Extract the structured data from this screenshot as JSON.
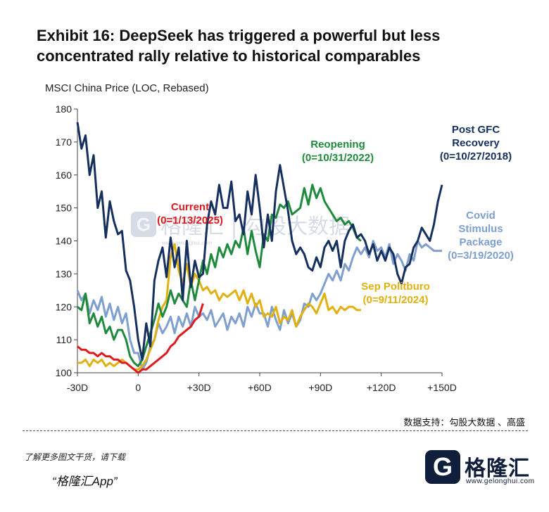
{
  "title": "Exhibit 16: DeepSeek has triggered a powerful but less concentrated rally relative to historical comparables",
  "source": "数据支持：勾股大数据 、高盛",
  "promo": {
    "line1": "了解更多图文干货，请下载",
    "line2": "“格隆汇App”"
  },
  "logo": {
    "glyph": "G",
    "name": "格隆汇",
    "url": "www.gelonghui.com"
  },
  "watermark": {
    "glyph": "G",
    "text": "格隆汇 | 勾股大数据",
    "url": "www.gelonghui.com"
  },
  "colors": {
    "navy": "#15305e",
    "green": "#1f8a3c",
    "lightblue": "#7f9fcf",
    "yellow": "#e2b00f",
    "red": "#e0191e"
  },
  "chart_data": {
    "type": "line",
    "title": "Exhibit 16: DeepSeek has triggered a powerful but less concentrated rally relative to historical comparables",
    "ylabel": "MSCI China Price (LOC, Rebased)",
    "xlabel": "",
    "xlim": [
      -30,
      150
    ],
    "ylim": [
      100,
      180
    ],
    "x_ticks": [
      -30,
      0,
      30,
      60,
      90,
      120,
      150
    ],
    "x_tick_labels": [
      "-30D",
      "0",
      "+30D",
      "+60D",
      "+90D",
      "+120D",
      "+150D"
    ],
    "y_ticks": [
      100,
      110,
      120,
      130,
      140,
      150,
      160,
      170,
      180
    ],
    "y_tick_labels": [
      "100",
      "110",
      "120",
      "130",
      "140",
      "150",
      "160",
      "170",
      "180"
    ],
    "series": [
      {
        "name": "Post GFC Recovery",
        "label_lines": [
          "Post GFC",
          "Recovery",
          "(0=10/27/2018)"
        ],
        "color": "#15305e",
        "x": [
          -30,
          -28,
          -26,
          -24,
          -22,
          -20,
          -18,
          -16,
          -14,
          -12,
          -10,
          -8,
          -6,
          -4,
          -2,
          0,
          2,
          4,
          6,
          8,
          10,
          12,
          14,
          16,
          18,
          20,
          22,
          24,
          26,
          28,
          30,
          32,
          34,
          36,
          38,
          40,
          42,
          44,
          46,
          48,
          50,
          52,
          54,
          56,
          58,
          60,
          62,
          64,
          66,
          68,
          70,
          72,
          74,
          76,
          78,
          80,
          82,
          84,
          86,
          88,
          90,
          92,
          94,
          96,
          98,
          100,
          102,
          104,
          106,
          108,
          110,
          112,
          114,
          116,
          118,
          120,
          122,
          124,
          126,
          128,
          130,
          132,
          134,
          136,
          138,
          140,
          142,
          144,
          146,
          148,
          150
        ],
        "y": [
          176,
          168,
          172,
          160,
          166,
          150,
          155,
          141,
          152,
          146,
          142,
          143,
          131,
          128,
          120,
          110,
          104,
          115,
          108,
          128,
          134,
          138,
          129,
          141,
          132,
          138,
          122,
          140,
          126,
          134,
          129,
          130,
          145,
          152,
          148,
          157,
          150,
          150,
          158,
          146,
          148,
          142,
          155,
          148,
          160,
          150,
          138,
          148,
          140,
          155,
          163,
          156,
          149,
          140,
          136,
          138,
          136,
          132,
          131,
          135,
          132,
          138,
          140,
          137,
          140,
          132,
          140,
          143,
          145,
          141,
          142,
          140,
          136,
          139,
          134,
          137,
          134,
          138,
          136,
          130,
          127,
          132,
          133,
          138,
          140,
          144,
          142,
          140,
          145,
          152,
          157
        ]
      },
      {
        "name": "Reopening",
        "label_lines": [
          "Reopening",
          "(0=10/31/2022)"
        ],
        "color": "#1f8a3c",
        "x": [
          -30,
          -28,
          -26,
          -24,
          -22,
          -20,
          -18,
          -16,
          -14,
          -12,
          -10,
          -8,
          -6,
          -4,
          -2,
          0,
          2,
          4,
          6,
          8,
          10,
          12,
          14,
          16,
          18,
          20,
          22,
          24,
          26,
          28,
          30,
          32,
          34,
          36,
          38,
          40,
          42,
          44,
          46,
          48,
          50,
          52,
          54,
          56,
          58,
          60,
          62,
          64,
          66,
          68,
          70,
          72,
          74,
          76,
          78,
          80,
          82,
          84,
          86,
          88,
          90,
          92,
          94,
          96,
          98,
          100,
          102,
          104,
          106,
          108,
          110
        ],
        "y": [
          120,
          119,
          124,
          115,
          118,
          114,
          117,
          112,
          114,
          110,
          113,
          113,
          110,
          105,
          103,
          102,
          104,
          108,
          112,
          116,
          121,
          117,
          120,
          125,
          121,
          124,
          122,
          120,
          128,
          122,
          128,
          134,
          130,
          136,
          132,
          138,
          135,
          139,
          136,
          140,
          138,
          144,
          136,
          143,
          137,
          132,
          142,
          140,
          148,
          147,
          151,
          150,
          152,
          148,
          149,
          150,
          156,
          151,
          157,
          153,
          156,
          152,
          150,
          148,
          146,
          147,
          145,
          146,
          144,
          141,
          140
        ]
      },
      {
        "name": "Covid Stimulus Package",
        "label_lines": [
          "Covid",
          "Stimulus",
          "Package",
          "(0=3/19/2020)"
        ],
        "color": "#7f9fcf",
        "x": [
          -30,
          -28,
          -26,
          -24,
          -22,
          -20,
          -18,
          -16,
          -14,
          -12,
          -10,
          -8,
          -6,
          -4,
          -2,
          0,
          2,
          4,
          6,
          8,
          10,
          12,
          14,
          16,
          18,
          20,
          22,
          24,
          26,
          28,
          30,
          32,
          34,
          36,
          38,
          40,
          42,
          44,
          46,
          48,
          50,
          52,
          54,
          56,
          58,
          60,
          62,
          64,
          66,
          68,
          70,
          72,
          74,
          76,
          78,
          80,
          82,
          84,
          86,
          88,
          90,
          92,
          94,
          96,
          98,
          100,
          102,
          104,
          106,
          108,
          110,
          112,
          114,
          116,
          118,
          120,
          122,
          124,
          126,
          128,
          130,
          132,
          134,
          136,
          138,
          140,
          142,
          144,
          146,
          148,
          150
        ],
        "y": [
          125,
          122,
          124,
          118,
          122,
          119,
          123,
          117,
          121,
          116,
          120,
          115,
          118,
          110,
          106,
          106,
          101,
          103,
          108,
          110,
          115,
          112,
          114,
          117,
          112,
          117,
          114,
          118,
          114,
          120,
          117,
          118,
          116,
          119,
          114,
          116,
          118,
          113,
          117,
          115,
          118,
          114,
          120,
          117,
          121,
          118,
          118,
          114,
          120,
          116,
          113,
          119,
          115,
          118,
          114,
          116,
          121,
          120,
          124,
          122,
          124,
          127,
          130,
          128,
          131,
          128,
          133,
          131,
          135,
          138,
          136,
          138,
          135,
          140,
          137,
          138,
          135,
          139,
          133,
          136,
          134,
          131,
          136,
          134,
          140,
          138,
          139,
          138,
          137,
          137,
          137
        ]
      },
      {
        "name": "Sep Politburo",
        "label_lines": [
          "Sep Politburo",
          "(0=9/11/2024)"
        ],
        "color": "#e2b00f",
        "x": [
          -30,
          -28,
          -26,
          -24,
          -22,
          -20,
          -18,
          -16,
          -14,
          -12,
          -10,
          -8,
          -6,
          -4,
          -2,
          0,
          2,
          4,
          6,
          8,
          10,
          12,
          14,
          16,
          18,
          20,
          22,
          24,
          26,
          28,
          30,
          32,
          34,
          36,
          38,
          40,
          42,
          44,
          46,
          48,
          50,
          52,
          54,
          56,
          58,
          60,
          62,
          64,
          66,
          68,
          70,
          72,
          74,
          76,
          78,
          80,
          82,
          84,
          86,
          88,
          90,
          92,
          94,
          96,
          98,
          100,
          102,
          104,
          106,
          108,
          110
        ],
        "y": [
          103,
          103,
          104,
          102,
          104,
          103,
          104,
          102,
          103,
          102,
          103,
          104,
          103,
          102,
          101,
          101,
          102,
          104,
          107,
          110,
          116,
          120,
          122,
          135,
          139,
          131,
          127,
          133,
          126,
          130,
          128,
          125,
          126,
          124,
          125,
          122,
          124,
          123,
          124,
          125,
          122,
          125,
          121,
          124,
          120,
          122,
          117,
          118,
          117,
          120,
          115,
          117,
          116,
          119,
          114,
          117,
          119,
          121,
          120,
          118,
          121,
          124,
          119,
          120,
          118,
          120,
          119,
          120,
          120,
          119,
          119
        ]
      },
      {
        "name": "Current",
        "label_lines": [
          "Current",
          "(0=1/13/2025)"
        ],
        "color": "#e0191e",
        "x": [
          -30,
          -28,
          -26,
          -24,
          -22,
          -20,
          -18,
          -16,
          -14,
          -12,
          -10,
          -8,
          -6,
          -4,
          -2,
          0,
          2,
          4,
          6,
          8,
          10,
          12,
          14,
          16,
          18,
          20,
          22,
          24,
          26,
          28,
          30,
          32
        ],
        "y": [
          108,
          107,
          107,
          106,
          106,
          105,
          106,
          105,
          105,
          104,
          104,
          103,
          103,
          102,
          101,
          100,
          101,
          101,
          102,
          103,
          104,
          105,
          106,
          108,
          109,
          111,
          112,
          113,
          114,
          116,
          117,
          121
        ]
      }
    ]
  }
}
